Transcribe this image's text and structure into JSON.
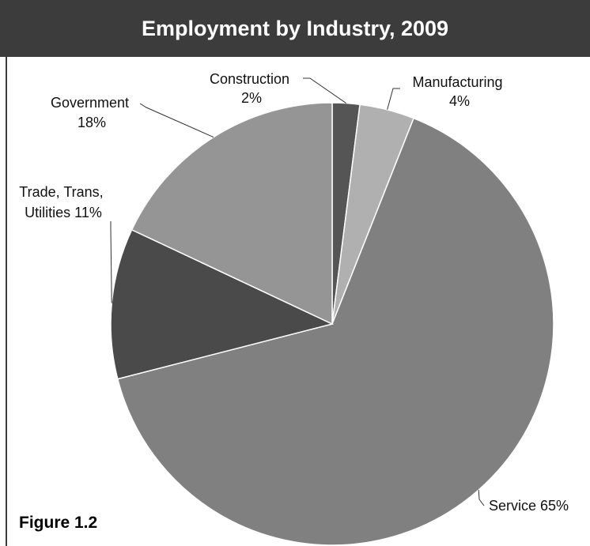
{
  "chart_data": {
    "type": "pie",
    "title": "Employment by Industry, 2009",
    "slices": [
      {
        "label": "Construction",
        "value": 2,
        "value_text": "2%",
        "color": "#555555"
      },
      {
        "label": "Manufacturing",
        "value": 4,
        "value_text": "4%",
        "color": "#b0b0b0"
      },
      {
        "label": "Service",
        "value": 65,
        "value_text": "65%",
        "color": "#808080"
      },
      {
        "label": "Trade, Trans, Utilities",
        "value": 11,
        "value_text": "11%",
        "color": "#4a4a4a"
      },
      {
        "label": "Government",
        "value": 18,
        "value_text": "18%",
        "color": "#959595"
      }
    ],
    "label_lines": {
      "construction": [
        "Construction",
        "2%"
      ],
      "manufacturing": [
        "Manufacturing",
        "4%"
      ],
      "service": [
        "Service 65%"
      ],
      "trade": [
        "Trade, Trans,",
        "Utilities 11%"
      ],
      "government": [
        "Government",
        "18%"
      ]
    }
  },
  "figure_label": "Figure 1.2",
  "colors": {
    "title_bar": "#3c3c3c",
    "title_text": "#ffffff",
    "slice_border": "#ffffff",
    "leader_line": "#333333"
  }
}
